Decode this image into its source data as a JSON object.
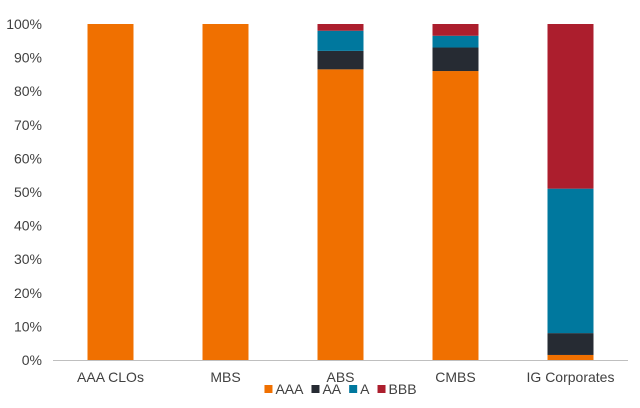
{
  "chart_data": {
    "type": "bar",
    "stacked": true,
    "categories": [
      "AAA CLOs",
      "MBS",
      "ABS",
      "CMBS",
      "IG Corporates"
    ],
    "series": [
      {
        "name": "AAA",
        "color": "#F07000",
        "values": [
          100,
          100,
          86.5,
          86,
          1.5
        ]
      },
      {
        "name": "AA",
        "color": "#262B33",
        "values": [
          0,
          0,
          5.5,
          7,
          6.5
        ]
      },
      {
        "name": "A",
        "color": "#00789E",
        "values": [
          0,
          0,
          6,
          3.5,
          43
        ]
      },
      {
        "name": "BBB",
        "color": "#AC1E2D",
        "values": [
          0,
          0,
          2,
          3.5,
          49
        ]
      }
    ],
    "ylim": [
      0,
      100
    ],
    "yticks": [
      "0%",
      "10%",
      "20%",
      "30%",
      "40%",
      "50%",
      "60%",
      "70%",
      "80%",
      "90%",
      "100%"
    ],
    "legend_position": "bottom",
    "grid": false,
    "title": "",
    "xlabel": "",
    "ylabel": ""
  }
}
